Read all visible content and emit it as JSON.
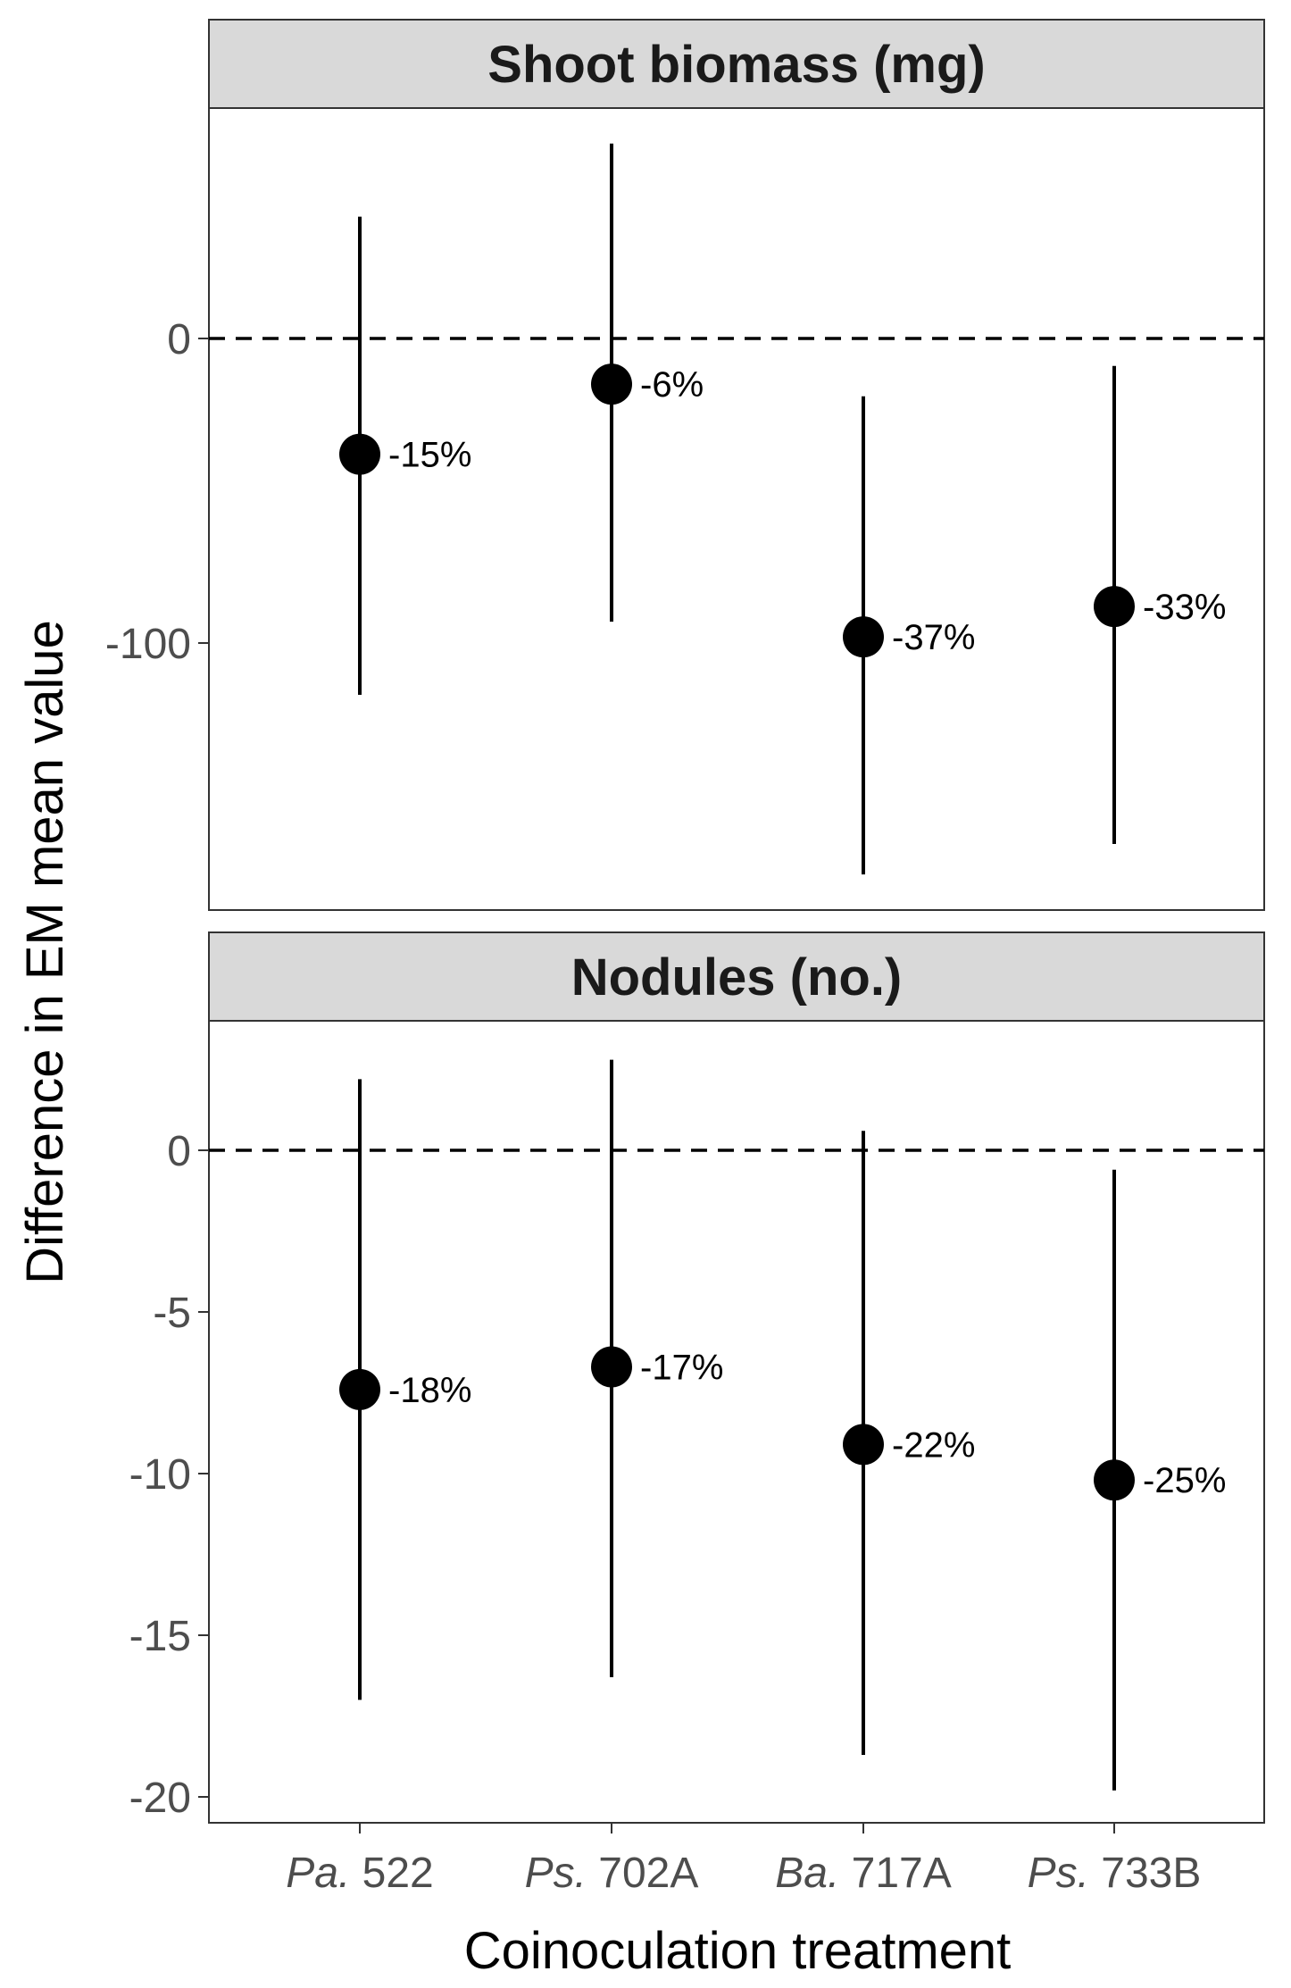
{
  "chart_data": {
    "type": "scatter",
    "style": "point-range (dot with vertical interval), faceted, dashed zero reference line",
    "xlabel": "Coinoculation treatment",
    "ylabel": "Difference in EM mean value",
    "categories": [
      {
        "genus": "Pa.",
        "strain": "522"
      },
      {
        "genus": "Ps.",
        "strain": "702A"
      },
      {
        "genus": "Ba.",
        "strain": "717A"
      },
      {
        "genus": "Ps.",
        "strain": "733B"
      }
    ],
    "grid": false,
    "legend": "none",
    "colors": {
      "points": "#000000",
      "strip_background": "#d9d9d9",
      "panel_border": "#333333",
      "zero_line": "#000000"
    },
    "facets": [
      {
        "title": "Shoot biomass (mg)",
        "ylim": [
          -176,
          76
        ],
        "yticks": [
          0,
          -100
        ],
        "reference_line": 0,
        "series": [
          {
            "estimate": -38,
            "lower": -117,
            "upper": 40,
            "label": "-15%"
          },
          {
            "estimate": -15,
            "lower": -93,
            "upper": 64,
            "label": "-6%"
          },
          {
            "estimate": -98,
            "lower": -176,
            "upper": -19,
            "label": "-37%"
          },
          {
            "estimate": -88,
            "lower": -166,
            "upper": -9,
            "label": "-33%"
          }
        ]
      },
      {
        "title": "Nodules (no.)",
        "ylim": [
          -20.8,
          3.9
        ],
        "yticks": [
          0,
          -5,
          -10,
          -15,
          -20
        ],
        "reference_line": 0,
        "series": [
          {
            "estimate": -7.4,
            "lower": -17.0,
            "upper": 2.2,
            "label": "-18%"
          },
          {
            "estimate": -6.7,
            "lower": -16.3,
            "upper": 2.8,
            "label": "-17%"
          },
          {
            "estimate": -9.1,
            "lower": -18.7,
            "upper": 0.6,
            "label": "-22%"
          },
          {
            "estimate": -10.2,
            "lower": -19.8,
            "upper": -0.6,
            "label": "-25%"
          }
        ]
      }
    ]
  }
}
